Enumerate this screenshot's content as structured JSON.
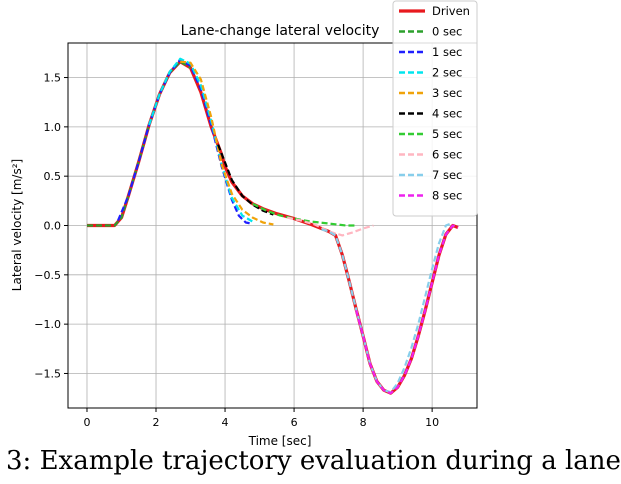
{
  "caption": "3:  Example trajectory evaluation during a lane",
  "chart_data": {
    "type": "line",
    "title": "Lane-change lateral velocity",
    "xlabel": "Time [sec]",
    "ylabel": "Lateral velocity [m/s²]",
    "xlim": [
      -0.55,
      11.3
    ],
    "ylim": [
      -1.85,
      1.85
    ],
    "xticks": [
      0,
      2,
      4,
      6,
      8,
      10
    ],
    "yticks": [
      -1.5,
      -1.0,
      -0.5,
      0.0,
      0.5,
      1.0,
      1.5
    ],
    "ytick_labels": [
      "−1.5",
      "−1.0",
      "−0.5",
      "0.0",
      "0.5",
      "1.0",
      "1.5"
    ],
    "grid": true,
    "legend_position": "top-right",
    "series": [
      {
        "name": "Driven",
        "color": "#e8191e",
        "style": "solid",
        "x": [
          0,
          0.8,
          1.0,
          1.2,
          1.5,
          1.8,
          2.1,
          2.4,
          2.7,
          3.0,
          3.3,
          3.6,
          3.9,
          4.0,
          4.2,
          4.5,
          4.8,
          5.1,
          5.5,
          6.0,
          6.5,
          7.0,
          7.2,
          7.4,
          7.6,
          7.8,
          8.0,
          8.2,
          8.4,
          8.6,
          8.8,
          9.0,
          9.2,
          9.4,
          9.6,
          9.8,
          10.0,
          10.2,
          10.4,
          10.6,
          10.75
        ],
        "y": [
          0,
          0,
          0.08,
          0.3,
          0.65,
          1.02,
          1.33,
          1.55,
          1.66,
          1.6,
          1.35,
          1.0,
          0.72,
          0.6,
          0.44,
          0.3,
          0.22,
          0.17,
          0.12,
          0.07,
          0.01,
          -0.06,
          -0.1,
          -0.3,
          -0.57,
          -0.85,
          -1.12,
          -1.4,
          -1.58,
          -1.67,
          -1.7,
          -1.64,
          -1.52,
          -1.35,
          -1.12,
          -0.86,
          -0.58,
          -0.3,
          -0.09,
          0.0,
          -0.02
        ]
      },
      {
        "name": "0 sec",
        "color": "#2ca02c",
        "style": "dashed",
        "x": [
          0,
          0.8,
          1.0,
          1.2,
          1.5,
          1.8,
          2.1,
          2.4,
          2.7,
          3.0
        ],
        "y": [
          0,
          0,
          0.08,
          0.3,
          0.65,
          1.02,
          1.33,
          1.55,
          1.66,
          1.6
        ]
      },
      {
        "name": "1 sec",
        "color": "#1f1fff",
        "style": "dashed",
        "x": [
          0.9,
          1.2,
          1.5,
          1.8,
          2.1,
          2.4,
          2.7,
          3.0,
          3.3,
          3.6,
          3.9,
          4.2,
          4.4,
          4.6,
          4.75
        ],
        "y": [
          0.05,
          0.3,
          0.65,
          1.02,
          1.33,
          1.55,
          1.68,
          1.62,
          1.38,
          1.02,
          0.6,
          0.26,
          0.1,
          0.03,
          0.02
        ]
      },
      {
        "name": "2 sec",
        "color": "#00e5ee",
        "style": "dashed",
        "x": [
          1.8,
          2.1,
          2.4,
          2.7,
          3.0,
          3.3,
          3.6,
          3.9,
          4.2,
          4.5,
          4.8
        ],
        "y": [
          1.02,
          1.33,
          1.56,
          1.69,
          1.64,
          1.42,
          1.06,
          0.62,
          0.28,
          0.1,
          0.04
        ]
      },
      {
        "name": "3 sec",
        "color": "#f0a30a",
        "style": "dashed",
        "x": [
          2.7,
          3.0,
          3.3,
          3.6,
          3.9,
          4.2,
          4.5,
          4.8,
          5.1,
          5.4
        ],
        "y": [
          1.66,
          1.65,
          1.48,
          1.1,
          0.62,
          0.32,
          0.16,
          0.08,
          0.03,
          0.01
        ]
      },
      {
        "name": "4 sec",
        "color": "#000000",
        "style": "dashed",
        "x": [
          3.8,
          4.0,
          4.2,
          4.5,
          4.8,
          5.1,
          5.4
        ],
        "y": [
          0.82,
          0.64,
          0.46,
          0.3,
          0.21,
          0.15,
          0.11
        ]
      },
      {
        "name": "5 sec",
        "color": "#33cc33",
        "style": "dashed",
        "x": [
          4.8,
          5.2,
          5.6,
          6.0,
          6.5,
          7.0,
          7.5,
          7.8
        ],
        "y": [
          0.22,
          0.15,
          0.1,
          0.07,
          0.04,
          0.02,
          0.0,
          0.0
        ]
      },
      {
        "name": "6 sec",
        "color": "#ffb6c1",
        "style": "dashed",
        "x": [
          5.8,
          6.2,
          6.6,
          7.0,
          7.4,
          7.7,
          8.0,
          8.3
        ],
        "y": [
          0.08,
          0.05,
          0.01,
          -0.06,
          -0.1,
          -0.07,
          -0.03,
          0.0
        ]
      },
      {
        "name": "7 sec",
        "color": "#87ceeb",
        "style": "dashed",
        "x": [
          6.8,
          7.0,
          7.2,
          7.4,
          7.6,
          7.8,
          8.0,
          8.2,
          8.4,
          8.6,
          8.8,
          9.0,
          9.2,
          9.4,
          9.6,
          9.8,
          10.0,
          10.2,
          10.4,
          10.55
        ],
        "y": [
          -0.04,
          -0.06,
          -0.1,
          -0.3,
          -0.57,
          -0.85,
          -1.12,
          -1.4,
          -1.58,
          -1.67,
          -1.69,
          -1.6,
          -1.44,
          -1.24,
          -1.0,
          -0.72,
          -0.44,
          -0.18,
          0.0,
          0.02
        ]
      },
      {
        "name": "8 sec",
        "color": "#ee22ee",
        "style": "dashed",
        "x": [
          7.8,
          8.0,
          8.2,
          8.4,
          8.6,
          8.8,
          9.0,
          9.2,
          9.4,
          9.6,
          9.8,
          10.0,
          10.2,
          10.4,
          10.6,
          10.75
        ],
        "y": [
          -0.86,
          -1.12,
          -1.4,
          -1.58,
          -1.67,
          -1.7,
          -1.64,
          -1.52,
          -1.35,
          -1.12,
          -0.86,
          -0.58,
          -0.3,
          -0.09,
          0.0,
          -0.02
        ]
      }
    ]
  }
}
